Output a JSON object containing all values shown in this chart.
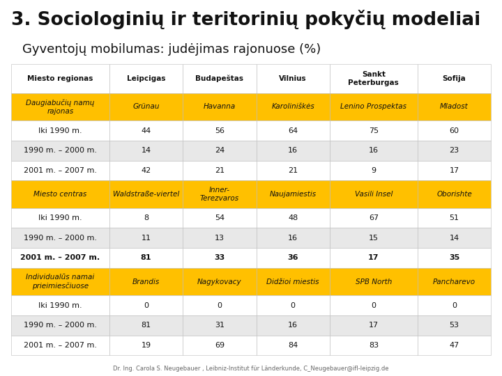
{
  "title": "3. Sociologinių ir teritorinių pokyčių modeliai",
  "subtitle": "Gyventojų mobilumas: judėjimas rajonuose (%)",
  "footer": "Dr. Ing. Carola S. Neugebauer , Leibniz-Institut für Länderkunde, C_Neugebauer@ifl-leipzig.de",
  "col_headers": [
    "Miesto regionas",
    "Leipcigas",
    "Budapeštas",
    "Vilnius",
    "Sankt\nPeterburgas",
    "Sofija"
  ],
  "yellow": "#FFC000",
  "light_gray": "#E8E8E8",
  "white": "#FFFFFF",
  "border_color": "#BBBBBB",
  "rows": [
    {
      "type": "section_yellow",
      "cells": [
        "Daugiabučių namų\nrajonas",
        "Grünau",
        "Havanna",
        "Karoliniškės",
        "Lenino Prospektas",
        "Mladost"
      ]
    },
    {
      "type": "data_white",
      "cells": [
        "Iki 1990 m.",
        "44",
        "56",
        "64",
        "75",
        "60"
      ]
    },
    {
      "type": "data_gray",
      "cells": [
        "1990 m. – 2000 m.",
        "14",
        "24",
        "16",
        "16",
        "23"
      ]
    },
    {
      "type": "data_white",
      "cells": [
        "2001 m. – 2007 m.",
        "42",
        "21",
        "21",
        "9",
        "17"
      ]
    },
    {
      "type": "section_yellow",
      "cells": [
        "Miesto centras",
        "Waldstraße-viertel",
        "Inner-\nTerezvaros",
        "Naujamiestis",
        "Vasili Insel",
        "Oborishte"
      ]
    },
    {
      "type": "data_white",
      "cells": [
        "Iki 1990 m.",
        "8",
        "54",
        "48",
        "67",
        "51"
      ]
    },
    {
      "type": "data_gray",
      "cells": [
        "1990 m. – 2000 m.",
        "11",
        "13",
        "16",
        "15",
        "14"
      ]
    },
    {
      "type": "data_bold_white",
      "cells": [
        "2001 m. – 2007 m.",
        "81",
        "33",
        "36",
        "17",
        "35"
      ]
    },
    {
      "type": "section_yellow",
      "cells": [
        "Individualūs namai\nprieimiesčiuose",
        "Brandis",
        "Nagykovacy",
        "Didžioi miestis",
        "SPB North",
        "Pancharevo"
      ]
    },
    {
      "type": "data_white",
      "cells": [
        "Iki 1990 m.",
        "0",
        "0",
        "0",
        "0",
        "0"
      ]
    },
    {
      "type": "data_gray",
      "cells": [
        "1990 m. – 2000 m.",
        "81",
        "31",
        "16",
        "17",
        "53"
      ]
    },
    {
      "type": "data_white",
      "cells": [
        "2001 m. – 2007 m.",
        "19",
        "69",
        "84",
        "83",
        "47"
      ]
    }
  ]
}
